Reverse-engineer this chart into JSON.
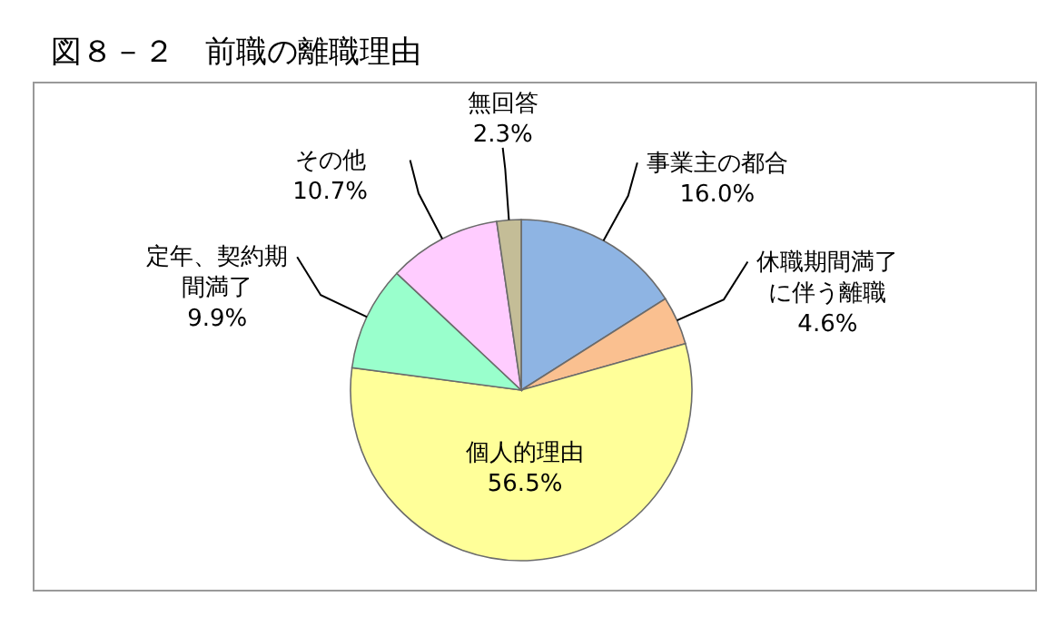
{
  "chart_data": {
    "type": "pie",
    "title": "図８－２　前職の離職理由",
    "categories": [
      "事業主の都合",
      "休職期間満了に伴う離職",
      "個人的理由",
      "定年、契約期間満了",
      "その他",
      "無回答"
    ],
    "values": [
      16.0,
      4.6,
      56.5,
      9.9,
      10.7,
      2.3
    ],
    "value_labels": [
      "16.0%",
      "4.6%",
      "56.5%",
      "9.9%",
      "10.7%",
      "2.3%"
    ],
    "colors": [
      "#8eb4e3",
      "#fac090",
      "#ffff99",
      "#99ffcc",
      "#ffccff",
      "#c4bd97"
    ]
  }
}
